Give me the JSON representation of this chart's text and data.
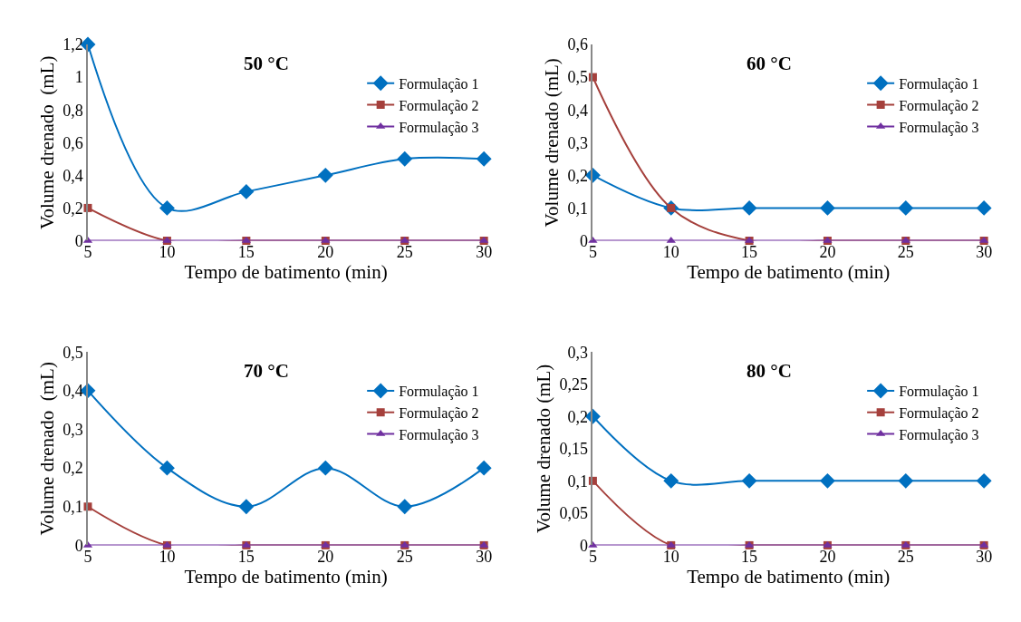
{
  "chart_data": [
    {
      "type": "line",
      "title": "50 °C",
      "xlabel": "Tempo de batimento (min)",
      "ylabel": "Volume drenado  (mL)",
      "x": [
        5,
        10,
        15,
        20,
        25,
        30
      ],
      "xlim": [
        5,
        30
      ],
      "xticks": [
        5,
        10,
        15,
        20,
        25,
        30
      ],
      "ylim": [
        0,
        1.2
      ],
      "yticks": [
        0,
        {
          "value": 0.2,
          "label": "0,2"
        },
        {
          "value": 0.4,
          "label": "0,4"
        },
        {
          "value": 0.6,
          "label": "0,6"
        },
        {
          "value": 0.8,
          "label": "0,8"
        },
        1,
        {
          "value": 1.2,
          "label": "1,2"
        }
      ],
      "legend": "top right",
      "line_style": "solid",
      "series": [
        {
          "name": "Formulação 1",
          "color": "#0070c0",
          "marker": "diamond",
          "values": [
            1.2,
            0.2,
            0.3,
            0.4,
            0.5,
            0.5
          ]
        },
        {
          "name": "Formulação 2",
          "color": "#a5403c",
          "marker": "square",
          "values": [
            0.2,
            0,
            0,
            0,
            0,
            0
          ]
        },
        {
          "name": "Formulação 3",
          "color": "#7030a0",
          "marker": "triangle",
          "values": [
            0,
            0,
            0,
            0,
            0,
            0
          ]
        }
      ]
    },
    {
      "type": "line",
      "title": "60 °C",
      "xlabel": "Tempo de batimento (min)",
      "ylabel": "Volume drenado (mL)",
      "x": [
        5,
        10,
        15,
        20,
        25,
        30
      ],
      "xlim": [
        5,
        30
      ],
      "xticks": [
        5,
        10,
        15,
        20,
        25,
        30
      ],
      "ylim": [
        0,
        0.6
      ],
      "yticks": [
        0,
        {
          "value": 0.1,
          "label": "0,1"
        },
        {
          "value": 0.2,
          "label": "0,2"
        },
        {
          "value": 0.3,
          "label": "0,3"
        },
        {
          "value": 0.4,
          "label": "0,4"
        },
        {
          "value": 0.5,
          "label": "0,5"
        },
        {
          "value": 0.6,
          "label": "0,6"
        }
      ],
      "legend": "top right",
      "line_style": "solid",
      "series": [
        {
          "name": "Formulação 1",
          "color": "#0070c0",
          "marker": "diamond",
          "values": [
            0.2,
            0.1,
            0.1,
            0.1,
            0.1,
            0.1
          ]
        },
        {
          "name": "Formulação 2",
          "color": "#a5403c",
          "marker": "square",
          "values": [
            0.5,
            0.1,
            0,
            0,
            0,
            0
          ]
        },
        {
          "name": "Formulação 3",
          "color": "#7030a0",
          "marker": "triangle",
          "values": [
            0,
            0,
            0,
            0,
            0,
            0
          ]
        }
      ]
    },
    {
      "type": "line",
      "title": "70 °C",
      "xlabel": "Tempo de batimento (min)",
      "ylabel": "Volume drenado  (mL)",
      "x": [
        5,
        10,
        15,
        20,
        25,
        30
      ],
      "xlim": [
        5,
        30
      ],
      "xticks": [
        5,
        10,
        15,
        20,
        25,
        30
      ],
      "ylim": [
        0,
        0.5
      ],
      "yticks": [
        0,
        {
          "value": 0.1,
          "label": "0,1"
        },
        {
          "value": 0.2,
          "label": "0,2"
        },
        {
          "value": 0.3,
          "label": "0,3"
        },
        {
          "value": 0.4,
          "label": "0,4"
        },
        {
          "value": 0.5,
          "label": "0,5"
        }
      ],
      "legend": "top right",
      "line_style": "solid",
      "series": [
        {
          "name": "Formulação 1",
          "color": "#0070c0",
          "marker": "diamond",
          "values": [
            0.4,
            0.2,
            0.1,
            0.2,
            0.1,
            0.2
          ]
        },
        {
          "name": "Formulação 2",
          "color": "#a5403c",
          "marker": "square",
          "values": [
            0.1,
            0,
            0,
            0,
            0,
            0
          ]
        },
        {
          "name": "Formulação 3",
          "color": "#7030a0",
          "marker": "triangle",
          "values": [
            0,
            0,
            0,
            0,
            0,
            0
          ]
        }
      ]
    },
    {
      "type": "line",
      "title": "80 °C",
      "xlabel": "Tempo de batimento (min)",
      "ylabel": "Volume drenado (mL)",
      "x": [
        5,
        10,
        15,
        20,
        25,
        30
      ],
      "xlim": [
        5,
        30
      ],
      "xticks": [
        5,
        10,
        15,
        20,
        25,
        30
      ],
      "ylim": [
        0,
        0.3
      ],
      "yticks": [
        0,
        {
          "value": 0.05,
          "label": "0,05"
        },
        {
          "value": 0.1,
          "label": "0,1"
        },
        {
          "value": 0.15,
          "label": "0,15"
        },
        {
          "value": 0.2,
          "label": "0,2"
        },
        {
          "value": 0.25,
          "label": "0,25"
        },
        {
          "value": 0.3,
          "label": "0,3"
        }
      ],
      "legend": "top right",
      "line_style": "solid",
      "series": [
        {
          "name": "Formulação 1",
          "color": "#0070c0",
          "marker": "diamond",
          "values": [
            0.2,
            0.1,
            0.1,
            0.1,
            0.1,
            0.1
          ]
        },
        {
          "name": "Formulação 2",
          "color": "#a5403c",
          "marker": "square",
          "values": [
            0.1,
            0,
            0,
            0,
            0,
            0
          ]
        },
        {
          "name": "Formulação 3",
          "color": "#7030a0",
          "marker": "triangle",
          "values": [
            0,
            0,
            0,
            0,
            0,
            0
          ]
        }
      ]
    }
  ]
}
